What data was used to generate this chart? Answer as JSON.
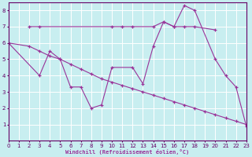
{
  "xlabel": "Windchill (Refroidissement éolien,°C)",
  "background_color": "#c8eef0",
  "grid_color": "#ffffff",
  "line_color": "#993399",
  "xmin": 0,
  "xmax": 23,
  "ymin": 0,
  "ymax": 8.5,
  "yticks": [
    1,
    2,
    3,
    4,
    5,
    6,
    7,
    8
  ],
  "xticks": [
    0,
    1,
    2,
    3,
    4,
    5,
    6,
    7,
    8,
    9,
    10,
    11,
    12,
    13,
    14,
    15,
    16,
    17,
    18,
    19,
    20,
    21,
    22,
    23
  ],
  "line1_x": [
    2,
    3,
    10,
    11,
    12,
    14,
    15,
    16,
    17,
    18,
    20
  ],
  "line1_y": [
    7.0,
    7.0,
    7.0,
    7.0,
    7.0,
    7.0,
    7.3,
    7.0,
    7.0,
    7.0,
    6.8
  ],
  "line2_x": [
    0,
    2,
    3,
    4,
    5,
    6,
    7,
    8,
    9,
    10,
    11,
    12,
    13,
    14,
    15,
    16,
    17,
    18,
    19,
    20,
    21,
    22,
    23
  ],
  "line2_y": [
    6.0,
    5.8,
    5.5,
    5.2,
    5.0,
    4.7,
    4.4,
    4.1,
    3.8,
    3.6,
    3.4,
    3.2,
    3.0,
    2.8,
    2.6,
    2.4,
    2.2,
    2.0,
    1.8,
    1.6,
    1.4,
    1.2,
    1.0
  ],
  "line3_x": [
    0,
    3,
    4,
    5,
    6,
    7,
    8,
    9,
    10,
    12,
    13,
    14,
    15,
    16,
    17,
    18,
    20,
    21,
    22,
    23
  ],
  "line3_y": [
    6.0,
    4.0,
    5.5,
    5.0,
    3.3,
    3.3,
    2.0,
    2.2,
    4.5,
    4.5,
    3.5,
    5.8,
    7.3,
    7.0,
    8.3,
    8.0,
    5.0,
    4.0,
    3.3,
    0.9
  ]
}
